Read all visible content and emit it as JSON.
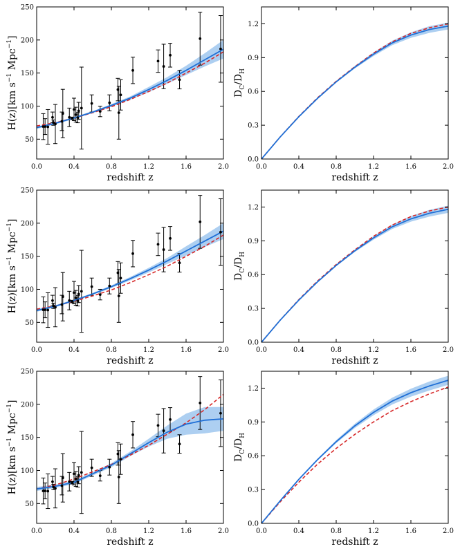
{
  "style": {
    "data_color": "#000000",
    "fit_color": "#1f6fd6",
    "band_color": "#9fc7ee",
    "reference_color": "#d62728"
  },
  "chart_data": [
    {
      "type": "scatter",
      "panel": "row-1-left",
      "xlabel": "redshift z",
      "ylabel_main": "H(z)[km s",
      "ylabel_sup1": "−1",
      "ylabel_mid": " Mpc",
      "ylabel_sup2": "−1",
      "ylabel_end": "]",
      "xlim": [
        0.0,
        2.0
      ],
      "ylim": [
        20,
        250
      ],
      "xticks": [
        "0.0",
        "0.4",
        "0.8",
        "1.2",
        "1.6",
        "2.0"
      ],
      "yticks": [
        "50",
        "100",
        "150",
        "200",
        "250"
      ],
      "grid": false,
      "legend": "none",
      "observations": {
        "x": [
          0.07,
          0.09,
          0.12,
          0.17,
          0.18,
          0.2,
          0.27,
          0.28,
          0.35,
          0.38,
          0.4,
          0.42,
          0.44,
          0.45,
          0.48,
          0.59,
          0.68,
          0.78,
          0.87,
          0.88,
          0.9,
          1.03,
          1.3,
          1.36,
          1.43,
          1.53,
          1.75,
          1.97
        ],
        "y": [
          69,
          69,
          68.6,
          83,
          75,
          72.9,
          77,
          88.8,
          83,
          81.5,
          95,
          87.1,
          82.6,
          92.8,
          97,
          104,
          92,
          105,
          125,
          90,
          117,
          154,
          168,
          160,
          177,
          140,
          202,
          186.5
        ],
        "yerr": [
          19.6,
          12,
          26.2,
          8,
          4,
          29.6,
          14,
          36.6,
          14,
          1.9,
          17,
          11.2,
          7.8,
          12.9,
          62,
          13,
          8,
          12,
          17,
          40,
          23,
          20,
          17,
          33.6,
          18,
          14,
          40,
          50.4
        ]
      },
      "series": [
        {
          "x": [
            0.0,
            0.2,
            0.4,
            0.6,
            0.8,
            1.0,
            1.2,
            1.4,
            1.6,
            1.8,
            2.0
          ],
          "y": [
            67.5,
            74,
            82,
            91,
            101,
            112,
            125,
            139,
            154,
            170,
            186
          ],
          "band_lower": [
            65.5,
            72.5,
            80.5,
            89.5,
            99,
            109.5,
            121,
            134,
            147,
            160,
            172
          ],
          "band_upper": [
            69.5,
            75.5,
            83.5,
            92.5,
            103,
            114.5,
            129,
            144,
            161,
            180,
            200
          ]
        },
        {
          "x": [
            0.0,
            0.2,
            0.4,
            0.6,
            0.8,
            1.0,
            1.2,
            1.4,
            1.6,
            1.8,
            2.0
          ],
          "y": [
            70,
            75,
            82,
            90,
            99,
            110,
            122,
            135,
            150,
            165,
            182
          ],
          "dashed": true
        }
      ]
    },
    {
      "type": "line",
      "panel": "row-1-right",
      "xlabel": "redshift z",
      "ylabel_main": "D",
      "ylabel_sub1": "C",
      "ylabel_mid": "/D",
      "ylabel_sub2": "H",
      "xlim": [
        0.0,
        2.0
      ],
      "ylim": [
        0.0,
        1.35
      ],
      "xticks": [
        "0.0",
        "0.4",
        "0.8",
        "1.2",
        "1.6",
        "2.0"
      ],
      "yticks": [
        "0.0",
        "0.3",
        "0.6",
        "0.9",
        "1.2"
      ],
      "grid": false,
      "legend": "none",
      "series": [
        {
          "x": [
            0.0,
            0.2,
            0.4,
            0.6,
            0.8,
            1.0,
            1.2,
            1.4,
            1.6,
            1.8,
            2.0
          ],
          "y": [
            0.0,
            0.195,
            0.375,
            0.538,
            0.685,
            0.815,
            0.93,
            1.03,
            1.1,
            1.15,
            1.18
          ],
          "band_lower": [
            0.0,
            0.195,
            0.373,
            0.534,
            0.678,
            0.804,
            0.914,
            1.01,
            1.075,
            1.12,
            1.15
          ],
          "band_upper": [
            0.0,
            0.195,
            0.377,
            0.542,
            0.692,
            0.826,
            0.946,
            1.05,
            1.125,
            1.18,
            1.21
          ]
        },
        {
          "x": [
            0.0,
            0.2,
            0.4,
            0.6,
            0.8,
            1.0,
            1.2,
            1.4,
            1.6,
            1.8,
            2.0
          ],
          "y": [
            0.0,
            0.196,
            0.378,
            0.543,
            0.69,
            0.82,
            0.94,
            1.04,
            1.115,
            1.165,
            1.2
          ],
          "dashed": true
        }
      ]
    },
    {
      "type": "scatter",
      "panel": "row-2-left",
      "xlabel": "redshift z",
      "ylabel_main": "H(z)[km s",
      "ylabel_sup1": "−1",
      "ylabel_mid": " Mpc",
      "ylabel_sup2": "−1",
      "ylabel_end": "]",
      "xlim": [
        0.0,
        2.0
      ],
      "ylim": [
        20,
        250
      ],
      "xticks": [
        "0.0",
        "0.4",
        "0.8",
        "1.2",
        "1.6",
        "2.0"
      ],
      "yticks": [
        "50",
        "100",
        "150",
        "200",
        "250"
      ],
      "grid": false,
      "legend": "none",
      "observations": {
        "x": [
          0.07,
          0.09,
          0.12,
          0.17,
          0.18,
          0.2,
          0.27,
          0.28,
          0.35,
          0.38,
          0.4,
          0.42,
          0.44,
          0.45,
          0.48,
          0.59,
          0.68,
          0.78,
          0.87,
          0.88,
          0.9,
          1.03,
          1.3,
          1.36,
          1.43,
          1.53,
          1.75,
          1.97
        ],
        "y": [
          69,
          69,
          68.6,
          83,
          75,
          72.9,
          77,
          88.8,
          83,
          81.5,
          95,
          87.1,
          82.6,
          92.8,
          97,
          104,
          92,
          105,
          125,
          90,
          117,
          154,
          168,
          160,
          177,
          140,
          202,
          186.5
        ],
        "yerr": [
          19.6,
          12,
          26.2,
          8,
          4,
          29.6,
          14,
          36.6,
          14,
          1.9,
          17,
          11.2,
          7.8,
          12.9,
          62,
          13,
          8,
          12,
          17,
          40,
          23,
          20,
          17,
          33.6,
          18,
          14,
          40,
          50.4
        ]
      },
      "series": [
        {
          "x": [
            0.0,
            0.2,
            0.4,
            0.6,
            0.8,
            1.0,
            1.2,
            1.4,
            1.6,
            1.8,
            2.0
          ],
          "y": [
            68,
            74.5,
            83,
            93,
            104,
            116,
            129,
            143,
            158,
            173,
            188
          ],
          "band_lower": [
            66,
            73,
            81.5,
            91.5,
            102,
            113.5,
            125.5,
            138.5,
            151,
            164,
            176
          ],
          "band_upper": [
            70,
            76,
            84.5,
            94.5,
            106,
            118.5,
            132.5,
            147.5,
            165,
            182,
            200
          ]
        },
        {
          "x": [
            0.0,
            0.2,
            0.4,
            0.6,
            0.8,
            1.0,
            1.2,
            1.4,
            1.6,
            1.8,
            2.0
          ],
          "y": [
            70,
            75,
            82,
            90,
            99,
            110,
            122,
            135,
            150,
            165,
            182
          ],
          "dashed": true
        }
      ]
    },
    {
      "type": "line",
      "panel": "row-2-right",
      "xlabel": "redshift z",
      "ylabel_main": "D",
      "ylabel_sub1": "C",
      "ylabel_mid": "/D",
      "ylabel_sub2": "H",
      "xlim": [
        0.0,
        2.0
      ],
      "ylim": [
        0.0,
        1.35
      ],
      "xticks": [
        "0.0",
        "0.4",
        "0.8",
        "1.2",
        "1.6",
        "2.0"
      ],
      "yticks": [
        "0.0",
        "0.3",
        "0.6",
        "0.9",
        "1.2"
      ],
      "grid": false,
      "legend": "none",
      "series": [
        {
          "x": [
            0.0,
            0.2,
            0.4,
            0.6,
            0.8,
            1.0,
            1.2,
            1.4,
            1.6,
            1.8,
            2.0
          ],
          "y": [
            0.0,
            0.195,
            0.374,
            0.536,
            0.682,
            0.812,
            0.926,
            1.025,
            1.095,
            1.145,
            1.18
          ],
          "band_lower": [
            0.0,
            0.195,
            0.372,
            0.532,
            0.675,
            0.801,
            0.91,
            1.005,
            1.07,
            1.115,
            1.148
          ],
          "band_upper": [
            0.0,
            0.195,
            0.376,
            0.54,
            0.689,
            0.823,
            0.942,
            1.045,
            1.12,
            1.175,
            1.212
          ]
        },
        {
          "x": [
            0.0,
            0.2,
            0.4,
            0.6,
            0.8,
            1.0,
            1.2,
            1.4,
            1.6,
            1.8,
            2.0
          ],
          "y": [
            0.0,
            0.196,
            0.378,
            0.543,
            0.69,
            0.82,
            0.94,
            1.04,
            1.115,
            1.165,
            1.2
          ],
          "dashed": true
        }
      ]
    },
    {
      "type": "scatter",
      "panel": "row-3-left",
      "xlabel": "redshift z",
      "ylabel_main": "H(z)[km s",
      "ylabel_sup1": "−1",
      "ylabel_mid": " Mpc",
      "ylabel_sup2": "−1",
      "ylabel_end": "]",
      "xlim": [
        0.0,
        2.0
      ],
      "ylim": [
        20,
        250
      ],
      "xticks": [
        "0.0",
        "0.4",
        "0.8",
        "1.2",
        "1.6",
        "2.0"
      ],
      "yticks": [
        "50",
        "100",
        "150",
        "200",
        "250"
      ],
      "grid": false,
      "legend": "none",
      "observations": {
        "x": [
          0.07,
          0.09,
          0.12,
          0.17,
          0.18,
          0.2,
          0.27,
          0.28,
          0.35,
          0.38,
          0.4,
          0.42,
          0.44,
          0.45,
          0.48,
          0.59,
          0.68,
          0.78,
          0.87,
          0.88,
          0.9,
          1.03,
          1.3,
          1.36,
          1.43,
          1.53,
          1.75,
          1.97
        ],
        "y": [
          69,
          69,
          68.6,
          83,
          75,
          72.9,
          77,
          88.8,
          83,
          81.5,
          95,
          87.1,
          82.6,
          92.8,
          97,
          104,
          92,
          105,
          125,
          90,
          117,
          154,
          168,
          160,
          177,
          140,
          202,
          186.5
        ],
        "yerr": [
          19.6,
          12,
          26.2,
          8,
          4,
          29.6,
          14,
          36.6,
          14,
          1.9,
          17,
          11.2,
          7.8,
          12.9,
          62,
          13,
          8,
          12,
          17,
          40,
          23,
          20,
          17,
          33.6,
          18,
          14,
          40,
          50.4
        ]
      },
      "series": [
        {
          "x": [
            0.0,
            0.2,
            0.4,
            0.6,
            0.8,
            1.0,
            1.2,
            1.4,
            1.6,
            1.8,
            2.0
          ],
          "y": [
            72,
            76,
            82,
            95,
            108,
            125,
            142,
            158,
            170,
            176,
            178
          ],
          "band_lower": [
            69,
            73.5,
            79.5,
            92.5,
            105,
            121.5,
            136,
            148,
            154,
            156,
            160
          ],
          "band_upper": [
            75,
            78.5,
            84.5,
            97.5,
            111,
            128.5,
            148,
            168,
            186,
            196,
            196
          ]
        },
        {
          "x": [
            0.0,
            0.2,
            0.4,
            0.6,
            0.8,
            1.0,
            1.2,
            1.4,
            1.6,
            1.8,
            2.0
          ],
          "y": [
            72,
            78,
            87,
            98,
            109,
            123,
            138,
            155,
            172,
            192,
            215
          ],
          "dashed": true
        }
      ]
    },
    {
      "type": "line",
      "panel": "row-3-right",
      "xlabel": "redshift z",
      "ylabel_main": "D",
      "ylabel_sub1": "C",
      "ylabel_mid": "/D",
      "ylabel_sub2": "H",
      "xlim": [
        0.0,
        2.0
      ],
      "ylim": [
        0.0,
        1.35
      ],
      "xticks": [
        "0.0",
        "0.4",
        "0.8",
        "1.2",
        "1.6",
        "2.0"
      ],
      "yticks": [
        "0.0",
        "0.3",
        "0.6",
        "0.9",
        "1.2"
      ],
      "grid": false,
      "legend": "none",
      "series": [
        {
          "x": [
            0.0,
            0.2,
            0.4,
            0.6,
            0.8,
            1.0,
            1.2,
            1.4,
            1.6,
            1.8,
            2.0
          ],
          "y": [
            0.0,
            0.2,
            0.39,
            0.565,
            0.725,
            0.865,
            0.985,
            1.085,
            1.16,
            1.22,
            1.27
          ],
          "band_lower": [
            0.0,
            0.199,
            0.386,
            0.557,
            0.712,
            0.846,
            0.96,
            1.055,
            1.125,
            1.18,
            1.23
          ],
          "band_upper": [
            0.0,
            0.201,
            0.394,
            0.573,
            0.738,
            0.884,
            1.01,
            1.115,
            1.195,
            1.26,
            1.31
          ]
        },
        {
          "x": [
            0.0,
            0.2,
            0.4,
            0.6,
            0.8,
            1.0,
            1.2,
            1.4,
            1.6,
            1.8,
            2.0
          ],
          "y": [
            0.0,
            0.19,
            0.365,
            0.525,
            0.665,
            0.79,
            0.9,
            1.0,
            1.08,
            1.15,
            1.21
          ],
          "dashed": true
        }
      ]
    }
  ]
}
